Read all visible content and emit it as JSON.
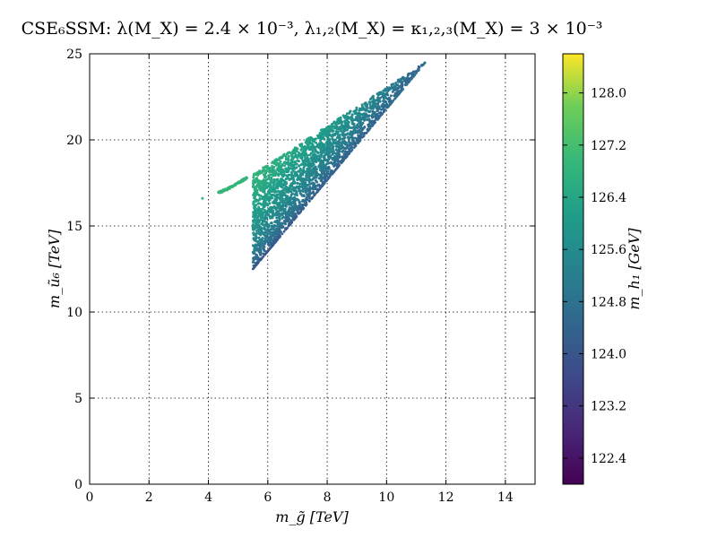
{
  "chart_data": {
    "type": "scatter",
    "title": "CSE₆SSM: λ(M_X) = 2.4 × 10⁻³, λ₁,₂(M_X) = κ₁,₂,₃(M_X) = 3 × 10⁻³",
    "xlabel": "m_g̃ [TeV]",
    "ylabel": "m_ũ₆ [TeV]",
    "colorbar_label": "m_h₁ [GeV]",
    "xlim": [
      0,
      15
    ],
    "ylim": [
      0,
      25
    ],
    "xticks": [
      0,
      2,
      4,
      6,
      8,
      10,
      12,
      14
    ],
    "yticks": [
      0,
      5,
      10,
      15,
      20,
      25
    ],
    "grid": true,
    "colormap": "viridis",
    "colorbar_range": [
      122.0,
      128.6
    ],
    "colorbar_ticks": [
      "122.4",
      "123.2",
      "124.0",
      "124.8",
      "125.6",
      "126.4",
      "127.2",
      "128.0"
    ],
    "regions": [
      {
        "name": "",
        "kind": "filled_triangle",
        "polygon": [
          [
            5.5,
            12.5
          ],
          [
            5.5,
            18.0
          ],
          [
            11.3,
            24.5
          ]
        ],
        "color_gradient": "from ~124.0 GeV along lower-right edge to ~126.9 GeV near upper-left edge"
      },
      {
        "name": "",
        "kind": "thin_band",
        "polyline": [
          [
            4.3,
            16.9
          ],
          [
            4.7,
            17.2
          ],
          [
            5.1,
            17.6
          ],
          [
            5.3,
            17.8
          ]
        ],
        "approx_mh1": 126.9
      },
      {
        "name": "",
        "kind": "isolated_point",
        "x": 3.8,
        "y": 16.6,
        "approx_mh1": 126.9
      }
    ]
  }
}
